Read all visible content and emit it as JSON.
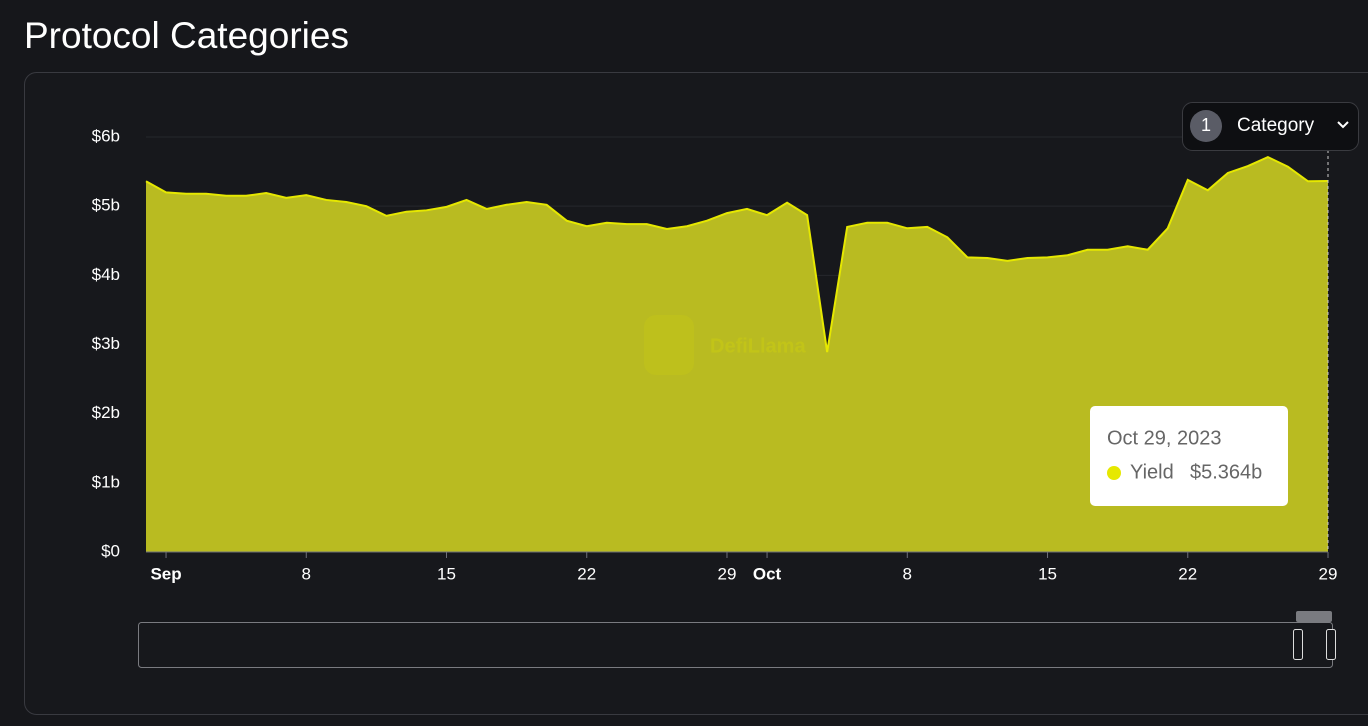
{
  "page": {
    "title": "Protocol Categories",
    "watermark": "DefiLlama"
  },
  "category_button": {
    "count": "1",
    "label": "Category"
  },
  "tooltip": {
    "date": "Oct 29, 2023",
    "series_name": "Yield",
    "value_label": "$5.364b"
  },
  "chart_data": {
    "type": "area",
    "x": [
      "2023-08-31",
      "2023-09-01",
      "2023-09-02",
      "2023-09-03",
      "2023-09-04",
      "2023-09-05",
      "2023-09-06",
      "2023-09-07",
      "2023-09-08",
      "2023-09-09",
      "2023-09-10",
      "2023-09-11",
      "2023-09-12",
      "2023-09-13",
      "2023-09-14",
      "2023-09-15",
      "2023-09-16",
      "2023-09-17",
      "2023-09-18",
      "2023-09-19",
      "2023-09-20",
      "2023-09-21",
      "2023-09-22",
      "2023-09-23",
      "2023-09-24",
      "2023-09-25",
      "2023-09-26",
      "2023-09-27",
      "2023-09-28",
      "2023-09-29",
      "2023-09-30",
      "2023-10-01",
      "2023-10-02",
      "2023-10-03",
      "2023-10-04",
      "2023-10-05",
      "2023-10-06",
      "2023-10-07",
      "2023-10-08",
      "2023-10-09",
      "2023-10-10",
      "2023-10-11",
      "2023-10-12",
      "2023-10-13",
      "2023-10-14",
      "2023-10-15",
      "2023-10-16",
      "2023-10-17",
      "2023-10-18",
      "2023-10-19",
      "2023-10-20",
      "2023-10-21",
      "2023-10-22",
      "2023-10-23",
      "2023-10-24",
      "2023-10-25",
      "2023-10-26",
      "2023-10-27",
      "2023-10-28",
      "2023-10-29"
    ],
    "series": [
      {
        "name": "Yield",
        "color": "#e6e800",
        "fill": "#b9bb21",
        "values": [
          5.36,
          5.2,
          5.18,
          5.18,
          5.15,
          5.15,
          5.19,
          5.12,
          5.16,
          5.09,
          5.06,
          5.0,
          4.86,
          4.92,
          4.94,
          4.99,
          5.09,
          4.96,
          5.02,
          5.06,
          5.02,
          4.79,
          4.71,
          4.76,
          4.74,
          4.74,
          4.67,
          4.71,
          4.79,
          4.9,
          4.96,
          4.87,
          5.05,
          4.87,
          2.89,
          4.7,
          4.76,
          4.76,
          4.68,
          4.7,
          4.55,
          4.26,
          4.25,
          4.21,
          4.25,
          4.26,
          4.29,
          4.37,
          4.37,
          4.42,
          4.37,
          4.68,
          5.38,
          5.23,
          5.48,
          5.58,
          5.71,
          5.57,
          5.36,
          5.364
        ]
      }
    ],
    "xlim": [
      "2023-08-31",
      "2023-10-29"
    ],
    "xticks": [
      {
        "value": "2023-09-01",
        "label": "Sep"
      },
      {
        "value": "2023-09-08",
        "label": "8"
      },
      {
        "value": "2023-09-15",
        "label": "15"
      },
      {
        "value": "2023-09-22",
        "label": "22"
      },
      {
        "value": "2023-09-29",
        "label": "29"
      },
      {
        "value": "2023-10-01",
        "label": "Oct"
      },
      {
        "value": "2023-10-08",
        "label": "8"
      },
      {
        "value": "2023-10-15",
        "label": "15"
      },
      {
        "value": "2023-10-22",
        "label": "22"
      },
      {
        "value": "2023-10-29",
        "label": "29"
      }
    ],
    "ylim": [
      0,
      6
    ],
    "yticks": [
      {
        "value": 0,
        "label": "$0"
      },
      {
        "value": 1,
        "label": "$1b"
      },
      {
        "value": 2,
        "label": "$2b"
      },
      {
        "value": 3,
        "label": "$3b"
      },
      {
        "value": 4,
        "label": "$4b"
      },
      {
        "value": 5,
        "label": "$5b"
      },
      {
        "value": 6,
        "label": "$6b"
      }
    ],
    "grid": true
  }
}
